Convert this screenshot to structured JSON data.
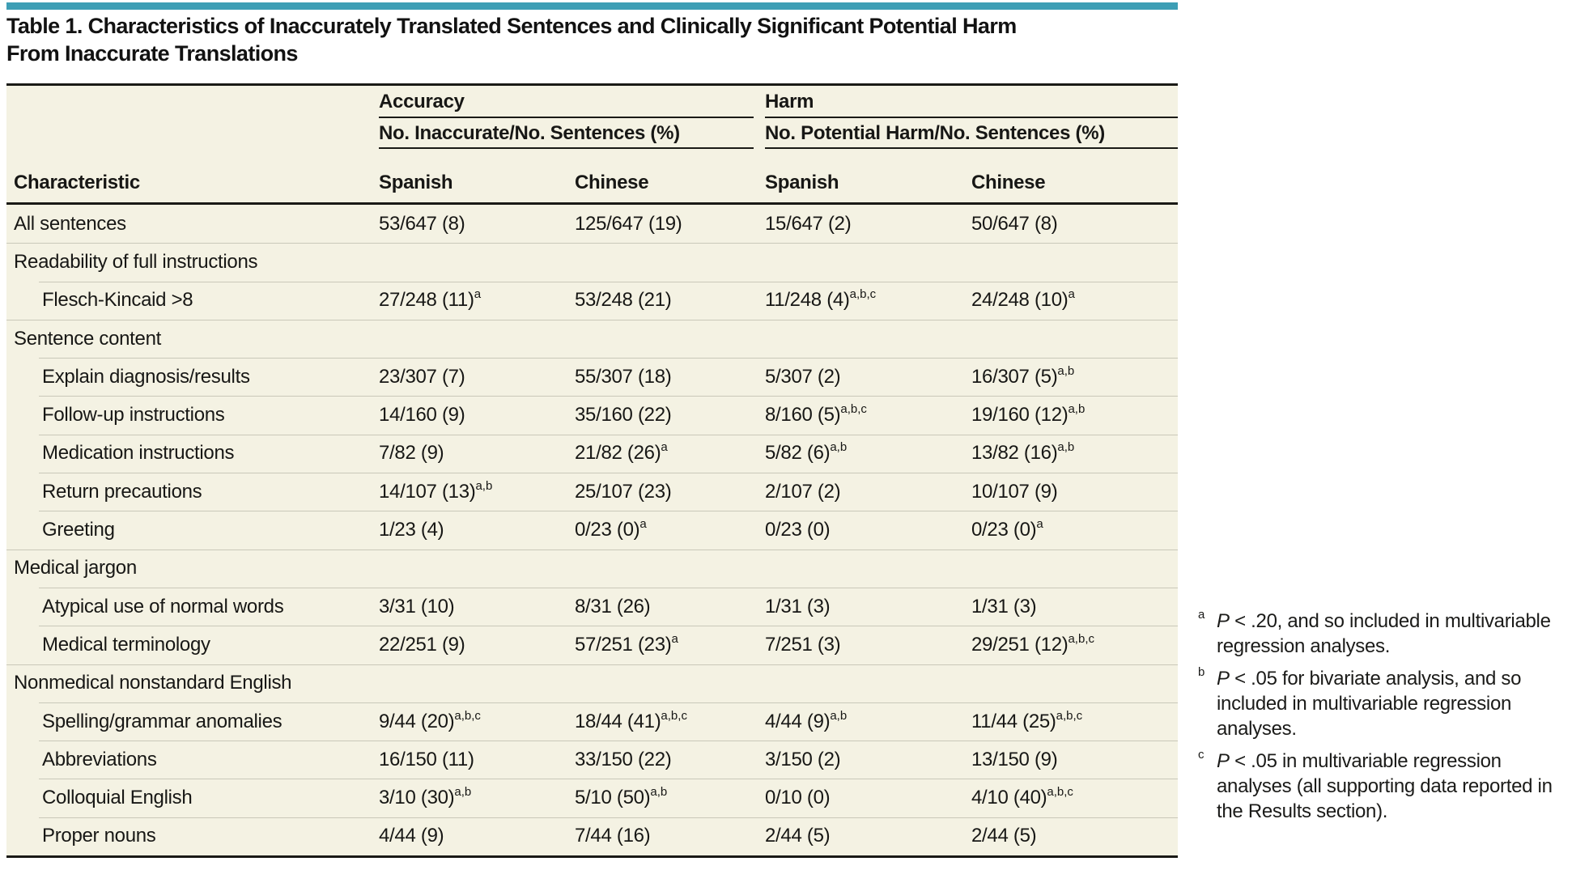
{
  "accent_color": "#3D9EB5",
  "table_background": "#F4F2E3",
  "title_lines": [
    "Table 1. Characteristics of Inaccurately Translated Sentences and Clinically Significant Potential Harm",
    "From Inaccurate Translations"
  ],
  "table": {
    "characteristic_header": "Characteristic",
    "col_groups": [
      {
        "label": "Accuracy",
        "subtitle": "No. Inaccurate/No. Sentences (%)"
      },
      {
        "label": "Harm",
        "subtitle": "No. Potential Harm/No. Sentences (%)"
      }
    ],
    "lang_headers": [
      "Spanish",
      "Chinese",
      "Spanish",
      "Chinese"
    ],
    "rows": [
      {
        "type": "data",
        "indent": false,
        "label": "All sentences",
        "cells": [
          {
            "t": "53/647 (8)"
          },
          {
            "t": "125/647 (19)"
          },
          {
            "t": "15/647 (2)"
          },
          {
            "t": "50/647 (8)"
          }
        ]
      },
      {
        "type": "group",
        "label": "Readability of full instructions"
      },
      {
        "type": "data",
        "indent": true,
        "label": "Flesch-Kincaid >8",
        "cells": [
          {
            "t": "27/248 (11)",
            "s": "a"
          },
          {
            "t": "53/248 (21)"
          },
          {
            "t": "11/248 (4)",
            "s": "a,b,c"
          },
          {
            "t": "24/248 (10)",
            "s": "a"
          }
        ]
      },
      {
        "type": "group",
        "label": "Sentence content"
      },
      {
        "type": "data",
        "indent": true,
        "label": "Explain diagnosis/results",
        "cells": [
          {
            "t": "23/307 (7)"
          },
          {
            "t": "55/307 (18)"
          },
          {
            "t": "5/307 (2)"
          },
          {
            "t": "16/307 (5)",
            "s": "a,b"
          }
        ]
      },
      {
        "type": "data",
        "indent": true,
        "label": "Follow-up instructions",
        "cells": [
          {
            "t": "14/160 (9)"
          },
          {
            "t": "35/160 (22)"
          },
          {
            "t": "8/160 (5)",
            "s": "a,b,c"
          },
          {
            "t": "19/160 (12)",
            "s": "a,b"
          }
        ]
      },
      {
        "type": "data",
        "indent": true,
        "label": "Medication instructions",
        "cells": [
          {
            "t": "7/82 (9)"
          },
          {
            "t": "21/82 (26)",
            "s": "a"
          },
          {
            "t": "5/82 (6)",
            "s": "a,b"
          },
          {
            "t": "13/82 (16)",
            "s": "a,b"
          }
        ]
      },
      {
        "type": "data",
        "indent": true,
        "label": "Return precautions",
        "cells": [
          {
            "t": "14/107 (13)",
            "s": "a,b"
          },
          {
            "t": "25/107 (23)"
          },
          {
            "t": "2/107 (2)"
          },
          {
            "t": "10/107 (9)"
          }
        ]
      },
      {
        "type": "data",
        "indent": true,
        "label": "Greeting",
        "cells": [
          {
            "t": "1/23 (4)"
          },
          {
            "t": "0/23 (0)",
            "s": "a"
          },
          {
            "t": "0/23 (0)"
          },
          {
            "t": "0/23 (0)",
            "s": "a"
          }
        ]
      },
      {
        "type": "group",
        "label": "Medical jargon"
      },
      {
        "type": "data",
        "indent": true,
        "label": "Atypical use of normal words",
        "cells": [
          {
            "t": "3/31 (10)"
          },
          {
            "t": "8/31 (26)"
          },
          {
            "t": "1/31 (3)"
          },
          {
            "t": "1/31 (3)"
          }
        ]
      },
      {
        "type": "data",
        "indent": true,
        "label": "Medical terminology",
        "cells": [
          {
            "t": "22/251 (9)"
          },
          {
            "t": "57/251 (23)",
            "s": "a"
          },
          {
            "t": "7/251 (3)"
          },
          {
            "t": "29/251 (12)",
            "s": "a,b,c"
          }
        ]
      },
      {
        "type": "group",
        "label": "Nonmedical nonstandard English"
      },
      {
        "type": "data",
        "indent": true,
        "label": "Spelling/grammar anomalies",
        "cells": [
          {
            "t": "9/44 (20)",
            "s": "a,b,c"
          },
          {
            "t": "18/44 (41)",
            "s": "a,b,c"
          },
          {
            "t": "4/44 (9)",
            "s": "a,b"
          },
          {
            "t": "11/44 (25)",
            "s": "a,b,c"
          }
        ]
      },
      {
        "type": "data",
        "indent": true,
        "label": "Abbreviations",
        "cells": [
          {
            "t": "16/150 (11)"
          },
          {
            "t": "33/150 (22)"
          },
          {
            "t": "3/150 (2)"
          },
          {
            "t": "13/150 (9)"
          }
        ]
      },
      {
        "type": "data",
        "indent": true,
        "label": "Colloquial English",
        "cells": [
          {
            "t": "3/10 (30)",
            "s": "a,b"
          },
          {
            "t": "5/10 (50)",
            "s": "a,b"
          },
          {
            "t": "0/10 (0)"
          },
          {
            "t": "4/10 (40)",
            "s": "a,b,c"
          }
        ]
      },
      {
        "type": "data",
        "indent": true,
        "label": "Proper nouns",
        "cells": [
          {
            "t": "4/44 (9)"
          },
          {
            "t": "7/44 (16)"
          },
          {
            "t": "2/44 (5)"
          },
          {
            "t": "2/44 (5)"
          }
        ]
      }
    ]
  },
  "footnotes": [
    {
      "mark": "a",
      "p": "P",
      "text": "< .20, and so included in multivariable regression analyses."
    },
    {
      "mark": "b",
      "p": "P",
      "text": "< .05 for bivariate analysis, and so included in multivariable regression analyses."
    },
    {
      "mark": "c",
      "p": "P",
      "text": "< .05 in multivariable regression analyses (all supporting data reported in the Results section)."
    }
  ]
}
